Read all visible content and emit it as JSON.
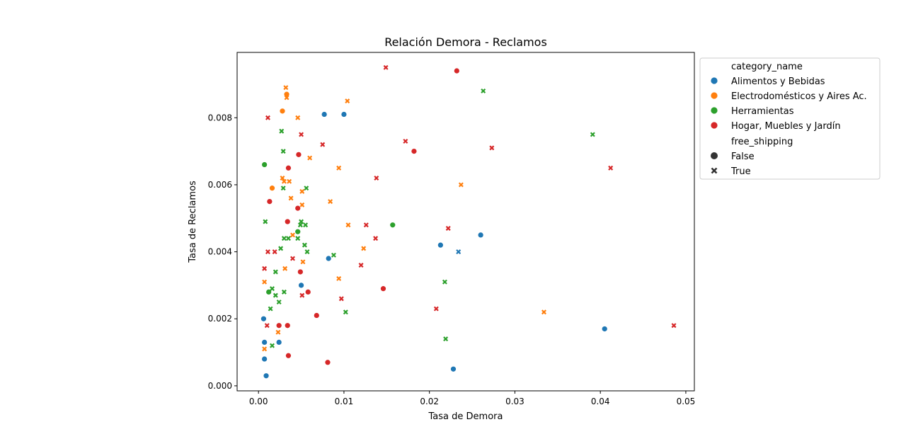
{
  "chart_data": {
    "type": "scatter",
    "title": "Relación Demora - Reclamos",
    "xlabel": "Tasa de Demora",
    "ylabel": "Tasa de Reclamos",
    "xlim": [
      -0.0025,
      0.051
    ],
    "ylim": [
      -0.00015,
      0.00995
    ],
    "xticks": [
      0.0,
      0.01,
      0.02,
      0.03,
      0.04,
      0.05
    ],
    "xtick_labels": [
      "0.00",
      "0.01",
      "0.02",
      "0.03",
      "0.04",
      "0.05"
    ],
    "yticks": [
      0.0,
      0.002,
      0.004,
      0.006,
      0.008
    ],
    "ytick_labels": [
      "0.000",
      "0.002",
      "0.004",
      "0.006",
      "0.008"
    ],
    "grid": false,
    "legend": {
      "placement": "outside-right",
      "hue_title": "category_name",
      "style_title": "free_shipping",
      "style_entries": [
        {
          "label": "False",
          "marker": "circle"
        },
        {
          "label": "True",
          "marker": "x"
        }
      ]
    },
    "series": [
      {
        "name": "Alimentos y Bebidas",
        "color": "#1f77b4",
        "points": [
          {
            "x": 0.0077,
            "y": 0.0081,
            "free_shipping": false
          },
          {
            "x": 0.01,
            "y": 0.0081,
            "free_shipping": false
          },
          {
            "x": 0.0082,
            "y": 0.0038,
            "free_shipping": false
          },
          {
            "x": 0.005,
            "y": 0.003,
            "free_shipping": false
          },
          {
            "x": 0.0006,
            "y": 0.002,
            "free_shipping": false
          },
          {
            "x": 0.0007,
            "y": 0.0013,
            "free_shipping": false
          },
          {
            "x": 0.0024,
            "y": 0.0013,
            "free_shipping": false
          },
          {
            "x": 0.0007,
            "y": 0.0008,
            "free_shipping": false
          },
          {
            "x": 0.0009,
            "y": 0.0003,
            "free_shipping": false
          },
          {
            "x": 0.0213,
            "y": 0.0042,
            "free_shipping": false
          },
          {
            "x": 0.026,
            "y": 0.0045,
            "free_shipping": false
          },
          {
            "x": 0.0228,
            "y": 0.0005,
            "free_shipping": false
          },
          {
            "x": 0.0405,
            "y": 0.0017,
            "free_shipping": false
          },
          {
            "x": 0.0234,
            "y": 0.004,
            "free_shipping": true
          }
        ]
      },
      {
        "name": "Electrodomésticos y Aires Ac.",
        "color": "#ff7f0e",
        "points": [
          {
            "x": 0.0033,
            "y": 0.0087,
            "free_shipping": false
          },
          {
            "x": 0.0028,
            "y": 0.0082,
            "free_shipping": false
          },
          {
            "x": 0.0016,
            "y": 0.0059,
            "free_shipping": false
          },
          {
            "x": 0.0032,
            "y": 0.0089,
            "free_shipping": true
          },
          {
            "x": 0.0033,
            "y": 0.0086,
            "free_shipping": true
          },
          {
            "x": 0.0104,
            "y": 0.0085,
            "free_shipping": true
          },
          {
            "x": 0.0046,
            "y": 0.008,
            "free_shipping": true
          },
          {
            "x": 0.006,
            "y": 0.0068,
            "free_shipping": true
          },
          {
            "x": 0.0094,
            "y": 0.0065,
            "free_shipping": true
          },
          {
            "x": 0.0028,
            "y": 0.0062,
            "free_shipping": true
          },
          {
            "x": 0.003,
            "y": 0.0061,
            "free_shipping": true
          },
          {
            "x": 0.0036,
            "y": 0.0061,
            "free_shipping": true
          },
          {
            "x": 0.0051,
            "y": 0.0058,
            "free_shipping": true
          },
          {
            "x": 0.0038,
            "y": 0.0056,
            "free_shipping": true
          },
          {
            "x": 0.0084,
            "y": 0.0055,
            "free_shipping": true
          },
          {
            "x": 0.0051,
            "y": 0.0054,
            "free_shipping": true
          },
          {
            "x": 0.0105,
            "y": 0.0048,
            "free_shipping": true
          },
          {
            "x": 0.004,
            "y": 0.0045,
            "free_shipping": true
          },
          {
            "x": 0.0123,
            "y": 0.0041,
            "free_shipping": true
          },
          {
            "x": 0.0052,
            "y": 0.0037,
            "free_shipping": true
          },
          {
            "x": 0.0031,
            "y": 0.0035,
            "free_shipping": true
          },
          {
            "x": 0.0094,
            "y": 0.0032,
            "free_shipping": true
          },
          {
            "x": 0.0007,
            "y": 0.0031,
            "free_shipping": true
          },
          {
            "x": 0.0023,
            "y": 0.0016,
            "free_shipping": true
          },
          {
            "x": 0.0007,
            "y": 0.0011,
            "free_shipping": true
          },
          {
            "x": 0.0237,
            "y": 0.006,
            "free_shipping": true
          },
          {
            "x": 0.0334,
            "y": 0.0022,
            "free_shipping": true
          }
        ]
      },
      {
        "name": "Herramientas",
        "color": "#2ca02c",
        "points": [
          {
            "x": 0.0007,
            "y": 0.0066,
            "free_shipping": false
          },
          {
            "x": 0.0046,
            "y": 0.0046,
            "free_shipping": false
          },
          {
            "x": 0.0012,
            "y": 0.0028,
            "free_shipping": false
          },
          {
            "x": 0.0157,
            "y": 0.0048,
            "free_shipping": false
          },
          {
            "x": 0.0027,
            "y": 0.0076,
            "free_shipping": true
          },
          {
            "x": 0.0029,
            "y": 0.007,
            "free_shipping": true
          },
          {
            "x": 0.0029,
            "y": 0.0059,
            "free_shipping": true
          },
          {
            "x": 0.0056,
            "y": 0.0059,
            "free_shipping": true
          },
          {
            "x": 0.0008,
            "y": 0.0049,
            "free_shipping": true
          },
          {
            "x": 0.005,
            "y": 0.0049,
            "free_shipping": true
          },
          {
            "x": 0.0049,
            "y": 0.0048,
            "free_shipping": true
          },
          {
            "x": 0.0055,
            "y": 0.0048,
            "free_shipping": true
          },
          {
            "x": 0.003,
            "y": 0.0044,
            "free_shipping": true
          },
          {
            "x": 0.0035,
            "y": 0.0044,
            "free_shipping": true
          },
          {
            "x": 0.0046,
            "y": 0.0044,
            "free_shipping": true
          },
          {
            "x": 0.0054,
            "y": 0.0042,
            "free_shipping": true
          },
          {
            "x": 0.0026,
            "y": 0.0041,
            "free_shipping": true
          },
          {
            "x": 0.0057,
            "y": 0.004,
            "free_shipping": true
          },
          {
            "x": 0.0088,
            "y": 0.0039,
            "free_shipping": true
          },
          {
            "x": 0.002,
            "y": 0.0034,
            "free_shipping": true
          },
          {
            "x": 0.0016,
            "y": 0.0029,
            "free_shipping": true
          },
          {
            "x": 0.003,
            "y": 0.0028,
            "free_shipping": true
          },
          {
            "x": 0.002,
            "y": 0.0027,
            "free_shipping": true
          },
          {
            "x": 0.0024,
            "y": 0.0025,
            "free_shipping": true
          },
          {
            "x": 0.0014,
            "y": 0.0023,
            "free_shipping": true
          },
          {
            "x": 0.0102,
            "y": 0.0022,
            "free_shipping": true
          },
          {
            "x": 0.0016,
            "y": 0.0012,
            "free_shipping": true
          },
          {
            "x": 0.0263,
            "y": 0.0088,
            "free_shipping": true
          },
          {
            "x": 0.0391,
            "y": 0.0075,
            "free_shipping": true
          },
          {
            "x": 0.0218,
            "y": 0.0031,
            "free_shipping": true
          },
          {
            "x": 0.0219,
            "y": 0.0014,
            "free_shipping": true
          }
        ]
      },
      {
        "name": "Hogar, Muebles y Jardín",
        "color": "#d62728",
        "points": [
          {
            "x": 0.0232,
            "y": 0.0094,
            "free_shipping": false
          },
          {
            "x": 0.0182,
            "y": 0.007,
            "free_shipping": false
          },
          {
            "x": 0.0047,
            "y": 0.0069,
            "free_shipping": false
          },
          {
            "x": 0.0035,
            "y": 0.0065,
            "free_shipping": false
          },
          {
            "x": 0.0013,
            "y": 0.0055,
            "free_shipping": false
          },
          {
            "x": 0.0046,
            "y": 0.0053,
            "free_shipping": false
          },
          {
            "x": 0.0034,
            "y": 0.0049,
            "free_shipping": false
          },
          {
            "x": 0.0049,
            "y": 0.0034,
            "free_shipping": false
          },
          {
            "x": 0.0058,
            "y": 0.0028,
            "free_shipping": false
          },
          {
            "x": 0.0146,
            "y": 0.0029,
            "free_shipping": false
          },
          {
            "x": 0.0068,
            "y": 0.0021,
            "free_shipping": false
          },
          {
            "x": 0.0024,
            "y": 0.0018,
            "free_shipping": false
          },
          {
            "x": 0.0034,
            "y": 0.0018,
            "free_shipping": false
          },
          {
            "x": 0.0035,
            "y": 0.0009,
            "free_shipping": false
          },
          {
            "x": 0.0081,
            "y": 0.0007,
            "free_shipping": false
          },
          {
            "x": 0.0149,
            "y": 0.0095,
            "free_shipping": true
          },
          {
            "x": 0.0011,
            "y": 0.008,
            "free_shipping": true
          },
          {
            "x": 0.005,
            "y": 0.0075,
            "free_shipping": true
          },
          {
            "x": 0.0075,
            "y": 0.0072,
            "free_shipping": true
          },
          {
            "x": 0.0172,
            "y": 0.0073,
            "free_shipping": true
          },
          {
            "x": 0.0273,
            "y": 0.0071,
            "free_shipping": true
          },
          {
            "x": 0.0138,
            "y": 0.0062,
            "free_shipping": true
          },
          {
            "x": 0.0412,
            "y": 0.0065,
            "free_shipping": true
          },
          {
            "x": 0.0126,
            "y": 0.0048,
            "free_shipping": true
          },
          {
            "x": 0.0222,
            "y": 0.0047,
            "free_shipping": true
          },
          {
            "x": 0.0137,
            "y": 0.0044,
            "free_shipping": true
          },
          {
            "x": 0.0011,
            "y": 0.004,
            "free_shipping": true
          },
          {
            "x": 0.0019,
            "y": 0.004,
            "free_shipping": true
          },
          {
            "x": 0.004,
            "y": 0.0038,
            "free_shipping": true
          },
          {
            "x": 0.012,
            "y": 0.0036,
            "free_shipping": true
          },
          {
            "x": 0.0007,
            "y": 0.0035,
            "free_shipping": true
          },
          {
            "x": 0.0051,
            "y": 0.0027,
            "free_shipping": true
          },
          {
            "x": 0.0097,
            "y": 0.0026,
            "free_shipping": true
          },
          {
            "x": 0.0208,
            "y": 0.0023,
            "free_shipping": true
          },
          {
            "x": 0.001,
            "y": 0.0018,
            "free_shipping": true
          },
          {
            "x": 0.0486,
            "y": 0.0018,
            "free_shipping": true
          }
        ]
      }
    ]
  }
}
